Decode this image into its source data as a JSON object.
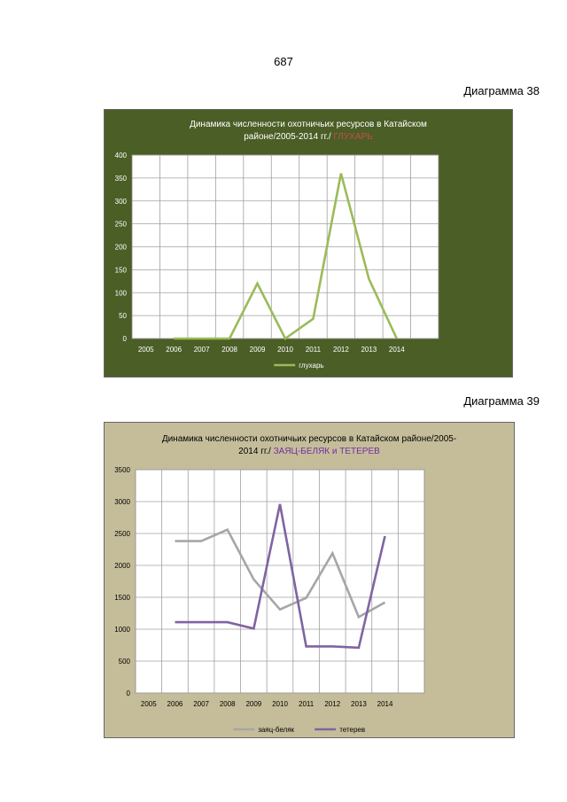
{
  "page": {
    "number": "687",
    "diagram1_label": "Диаграмма 38",
    "diagram2_label": "Диаграмма 39"
  },
  "charts": {
    "c1": {
      "title_line1": "Динамика численности охотничьих ресурсов  в  Катайском",
      "title_line2": "районе/2005-2014 гг./ ",
      "title_highlight": "ГЛУХАРЬ"
    },
    "c2": {
      "title_line1": "Динамика численности  охотничьих ресурсов   в  Катайском районе/2005-",
      "title_line2": "2014  гг./  ",
      "title_highlight": "ЗАЯЦ-БЕЛЯК и ТЕТЕРЕВ"
    }
  },
  "colors": {
    "panel1_bg": "#4b5e26",
    "panel2_bg": "#c5bd9a",
    "capercaillie": "#9bbb59",
    "hare": "#a6a6a6",
    "black_grouse": "#8064a2"
  },
  "chart_data": [
    {
      "type": "line",
      "title": "Динамика численности охотничьих ресурсов  в  Катайском районе/2005-2014 гг./ ГЛУХАРЬ",
      "categories": [
        "2005",
        "2006",
        "2007",
        "2008",
        "2009",
        "2010",
        "2011",
        "2012",
        "2013",
        "2014"
      ],
      "ylim": [
        0,
        400
      ],
      "yticks": [
        0,
        50,
        100,
        150,
        200,
        250,
        300,
        350,
        400
      ],
      "grid": true,
      "legend_position": "bottom",
      "series": [
        {
          "name": "глухарь",
          "color": "#9bbb59",
          "values": [
            null,
            0,
            0,
            0,
            120,
            0,
            43,
            360,
            130,
            0
          ]
        }
      ]
    },
    {
      "type": "line",
      "title": "Динамика численности  охотничьих ресурсов   в  Катайском районе/2005-2014  гг./  ЗАЯЦ-БЕЛЯК и ТЕТЕРЕВ",
      "categories": [
        "2005",
        "2006",
        "2007",
        "2008",
        "2009",
        "2010",
        "2011",
        "2012",
        "2013",
        "2014"
      ],
      "ylim": [
        0,
        3500
      ],
      "yticks": [
        0,
        500,
        1000,
        1500,
        2000,
        2500,
        3000,
        3500
      ],
      "grid": true,
      "legend_position": "bottom",
      "series": [
        {
          "name": "заяц-беляк",
          "color": "#a6a6a6",
          "values": [
            null,
            2380,
            2380,
            2560,
            1780,
            1310,
            1490,
            2190,
            1190,
            1420
          ]
        },
        {
          "name": "тетерев",
          "color": "#8064a2",
          "values": [
            null,
            1110,
            1110,
            1110,
            1010,
            2960,
            730,
            730,
            710,
            2460
          ]
        }
      ]
    }
  ]
}
